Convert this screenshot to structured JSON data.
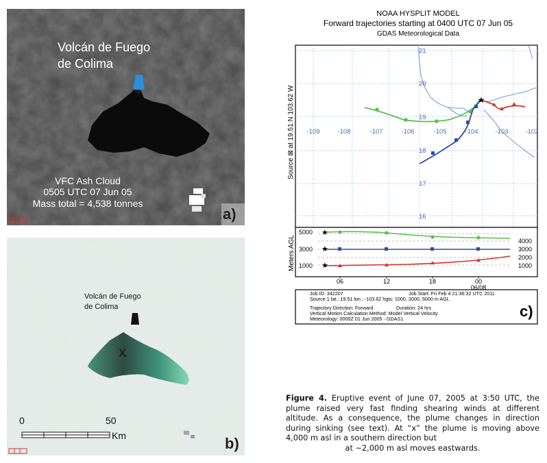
{
  "panel_a": {
    "volcano_name_line1": "Volcán de Fuego",
    "volcano_name_line2": "de Colima",
    "info_line1": "VFC Ash Cloud",
    "info_line2": "0505 UTC 07 Jun 05",
    "info_line3": "Mass total = 4,538 tonnes",
    "panel_label": "a)"
  },
  "panel_b": {
    "volcano_name_line1": "Volcán de Fuego",
    "volcano_name_line2": "de Colima",
    "marker": "X",
    "scale_0": "0",
    "scale_50": "50",
    "scale_unit": "Km",
    "panel_label": "b)"
  },
  "panel_c": {
    "title1": "NOAA HYSPLIT MODEL",
    "title2": "Forward trajectories starting at 0400 UTC 07 Jun 05",
    "title3": "GDAS Meteorological Data",
    "side_label": "Source ⊠  at   19.51 N  103.62 W",
    "lat_labels": [
      "21",
      "20",
      "19",
      "18",
      "17",
      "16"
    ],
    "lon_labels": [
      "-109",
      "-108",
      "-107",
      "-106",
      "-105",
      "-104",
      "-103",
      "-102"
    ],
    "height_axis_label": "Meters AGL",
    "left_heights": [
      "5000",
      "3000",
      "1000"
    ],
    "right_heights": [
      "4000",
      "3000",
      "2000",
      "1000"
    ],
    "time_ticks": [
      "06",
      "12",
      "18",
      "00"
    ],
    "date_tick": "06/08",
    "job_id": "Job ID: 342207",
    "job_start": "Job Start: Fri Feb  4 21:36:32 UTC 2011",
    "source_line": "Source 1 lat.: 19.51  lon.: -103.62  hgts: 1000, 3000, 5000 m AGL",
    "traj_dir": "Trajectory Direction: Forward",
    "duration": "Duration: 24 hrs",
    "vert_motion": "Vertical Motion Calculation Method:     Model Vertical Velocity",
    "meteorology": "Meteorology: 0000Z 01 Jun 2005 - GDAS1",
    "panel_label": "c)"
  },
  "caption": {
    "label": "Figure 4.",
    "text": " Eruptive event of June 07, 2005 at 3:50 UTC, the plume raised very fast finding shearing winds at different altitude. As a consequence, the plume changes in direction during sinking (see text). At “x” the plume is moving above 4,000 m asl in a southern direction but",
    "last_line": "at ~2,000 m asl moves eastwards."
  },
  "colors": {
    "green": "#5cbf4a",
    "blue": "#2b4fa8",
    "red": "#d8322a",
    "grid": "#8fb4e0",
    "vent_blue": "#2a8fd8"
  }
}
